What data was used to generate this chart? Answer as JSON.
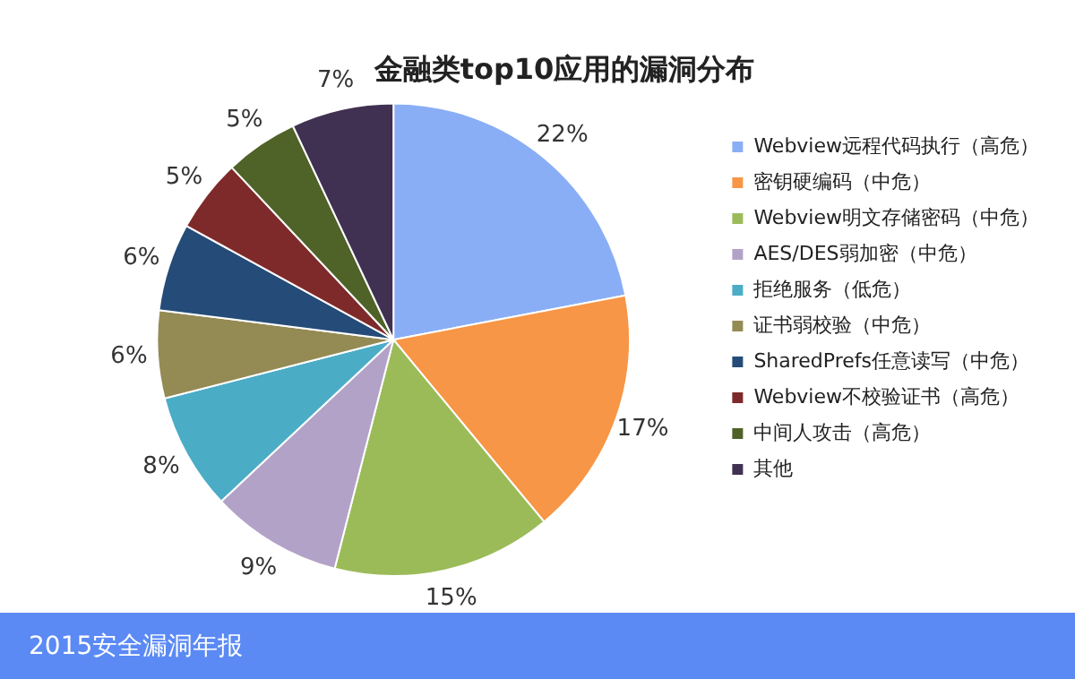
{
  "chart_data": {
    "type": "pie",
    "title": "金融类top10应用的漏洞分布",
    "categories": [
      "Webview远程代码执行（高危）",
      "密钥硬编码（中危）",
      "Webview明文存储密码（中危）",
      "AES/DES弱加密（中危）",
      "拒绝服务（低危）",
      "证书弱校验（中危）",
      "SharedPrefs任意读写（中危）",
      "Webview不校验证书（高危）",
      "中间人攻击（高危）",
      "其他"
    ],
    "values": [
      22,
      17,
      15,
      9,
      8,
      6,
      6,
      5,
      5,
      7
    ],
    "value_labels": [
      "22%",
      "17%",
      "15%",
      "9%",
      "8%",
      "6%",
      "6%",
      "5%",
      "5%",
      "7%"
    ],
    "colors": [
      "#8aaef5",
      "#f79646",
      "#9bbb59",
      "#b3a2c7",
      "#4bacc6",
      "#948a54",
      "#254c78",
      "#7f2a2a",
      "#4f6228",
      "#403152"
    ],
    "legend": "right",
    "annotations": [
      "2015安全漏洞年报"
    ]
  }
}
